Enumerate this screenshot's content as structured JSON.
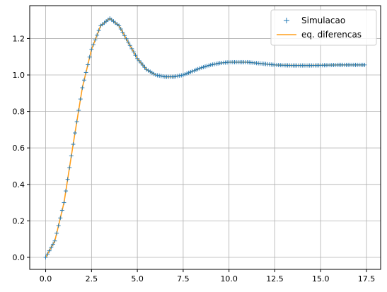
{
  "chart_data": {
    "type": "line",
    "title": "",
    "xlabel": "",
    "ylabel": "",
    "xlim": [
      -0.87,
      18.27
    ],
    "ylim": [
      -0.066,
      1.38
    ],
    "x_ticks": [
      0.0,
      2.5,
      5.0,
      7.5,
      10.0,
      12.5,
      15.0,
      17.5
    ],
    "x_tick_labels": [
      "0.0",
      "2.5",
      "5.0",
      "7.5",
      "10.0",
      "12.5",
      "15.0",
      "17.5"
    ],
    "y_ticks": [
      0.0,
      0.2,
      0.4,
      0.6,
      0.8,
      1.0,
      1.2
    ],
    "y_tick_labels": [
      "0.0",
      "0.2",
      "0.4",
      "0.6",
      "0.8",
      "1.0",
      "1.2"
    ],
    "grid": true,
    "legend_position": "top-right",
    "series": [
      {
        "name": "Simulacao",
        "style": "markers",
        "marker": "+",
        "color": "#1f77b4",
        "x": [
          0.0,
          0.5,
          1.0,
          1.5,
          2.0,
          2.5,
          3.0,
          3.5,
          4.0,
          4.5,
          5.0,
          5.5,
          6.0,
          6.5,
          7.0,
          7.5,
          8.0,
          8.5,
          9.0,
          9.5,
          10.0,
          10.5,
          11.0,
          11.5,
          12.0,
          12.5,
          13.0,
          13.5,
          14.0,
          14.5,
          15.0,
          15.5,
          16.0,
          16.5,
          17.0,
          17.4
        ],
        "y": [
          0.0,
          0.09,
          0.3,
          0.62,
          0.93,
          1.14,
          1.27,
          1.31,
          1.27,
          1.18,
          1.09,
          1.03,
          1.0,
          0.99,
          0.99,
          1.0,
          1.02,
          1.04,
          1.055,
          1.065,
          1.07,
          1.07,
          1.07,
          1.065,
          1.06,
          1.055,
          1.053,
          1.052,
          1.052,
          1.052,
          1.053,
          1.054,
          1.055,
          1.055,
          1.055,
          1.055
        ]
      },
      {
        "name": "eq. diferencas",
        "style": "line",
        "color": "#ff9f1c",
        "x": [
          0.0,
          0.5,
          1.0,
          1.5,
          2.0,
          2.5,
          3.0,
          3.5,
          4.0,
          4.5,
          5.0,
          5.5,
          6.0,
          6.5,
          7.0,
          7.5,
          8.0,
          8.5,
          9.0,
          9.5,
          10.0,
          10.5,
          11.0,
          11.5,
          12.0,
          12.5,
          13.0,
          13.5,
          14.0,
          14.5,
          15.0,
          15.5,
          16.0,
          16.5,
          17.0,
          17.4
        ],
        "y": [
          0.0,
          0.09,
          0.3,
          0.62,
          0.93,
          1.14,
          1.27,
          1.31,
          1.27,
          1.18,
          1.09,
          1.03,
          1.0,
          0.99,
          0.99,
          1.0,
          1.02,
          1.04,
          1.055,
          1.065,
          1.07,
          1.07,
          1.07,
          1.065,
          1.06,
          1.055,
          1.053,
          1.052,
          1.052,
          1.052,
          1.053,
          1.054,
          1.055,
          1.055,
          1.055,
          1.055
        ]
      }
    ]
  }
}
